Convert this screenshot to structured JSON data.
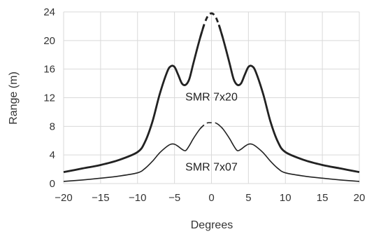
{
  "chart_data": {
    "type": "line",
    "xlabel": "Degrees",
    "ylabel": "Range (m)",
    "xlim": [
      -20,
      20
    ],
    "ylim": [
      0,
      24
    ],
    "xticks": [
      -20,
      -15,
      -10,
      -5,
      0,
      5,
      10,
      15,
      20
    ],
    "yticks": [
      0,
      4,
      8,
      12,
      16,
      20,
      24
    ],
    "xtick_labels": [
      "−20",
      "−15",
      "−10",
      "−5",
      "0",
      "5",
      "10",
      "15",
      "20"
    ],
    "ytick_labels": [
      "0",
      "4",
      "8",
      "12",
      "16",
      "20",
      "24"
    ],
    "grid": true,
    "series": [
      {
        "name": "SMR 7x20",
        "color": "#222222",
        "line_width": "thick",
        "dashed_x_range": [
          -1.3,
          1.3
        ],
        "points": [
          [
            -20,
            1.6
          ],
          [
            -17.5,
            2.1
          ],
          [
            -15,
            2.6
          ],
          [
            -12.5,
            3.3
          ],
          [
            -10,
            4.4
          ],
          [
            -9,
            5.8
          ],
          [
            -8,
            8.6
          ],
          [
            -7,
            12.5
          ],
          [
            -6,
            15.6
          ],
          [
            -5.5,
            16.4
          ],
          [
            -5,
            16.3
          ],
          [
            -4.5,
            15.2
          ],
          [
            -4,
            14.0
          ],
          [
            -3.5,
            13.8
          ],
          [
            -3,
            14.6
          ],
          [
            -2.5,
            16.6
          ],
          [
            -2,
            18.6
          ],
          [
            -1.5,
            20.5
          ],
          [
            -1,
            22.2
          ],
          [
            -0.5,
            23.4
          ],
          [
            0,
            23.8
          ],
          [
            0.5,
            23.4
          ],
          [
            1,
            22.2
          ],
          [
            1.5,
            20.5
          ],
          [
            2,
            18.6
          ],
          [
            2.5,
            16.6
          ],
          [
            3,
            14.6
          ],
          [
            3.5,
            13.8
          ],
          [
            4,
            14.0
          ],
          [
            4.5,
            15.2
          ],
          [
            5,
            16.3
          ],
          [
            5.5,
            16.4
          ],
          [
            6,
            15.6
          ],
          [
            7,
            12.5
          ],
          [
            8,
            8.6
          ],
          [
            9,
            5.8
          ],
          [
            10,
            4.4
          ],
          [
            12.5,
            3.3
          ],
          [
            15,
            2.6
          ],
          [
            17.5,
            2.1
          ],
          [
            20,
            1.6
          ]
        ]
      },
      {
        "name": "SMR 7x07",
        "color": "#222222",
        "line_width": "thin",
        "dashed_x_range": [
          -1.3,
          1.3
        ],
        "points": [
          [
            -20,
            0.3
          ],
          [
            -17.5,
            0.5
          ],
          [
            -15,
            0.75
          ],
          [
            -12.5,
            1.05
          ],
          [
            -10,
            1.5
          ],
          [
            -9,
            2.1
          ],
          [
            -8,
            3.1
          ],
          [
            -7,
            4.3
          ],
          [
            -6,
            5.2
          ],
          [
            -5.5,
            5.5
          ],
          [
            -5,
            5.5
          ],
          [
            -4.5,
            5.2
          ],
          [
            -4,
            4.8
          ],
          [
            -3.5,
            4.6
          ],
          [
            -3,
            5.3
          ],
          [
            -2.5,
            6.2
          ],
          [
            -2,
            7.0
          ],
          [
            -1.5,
            7.7
          ],
          [
            -1,
            8.2
          ],
          [
            -0.5,
            8.5
          ],
          [
            0,
            8.5
          ],
          [
            0.5,
            8.5
          ],
          [
            1,
            8.2
          ],
          [
            1.5,
            7.7
          ],
          [
            2,
            7.0
          ],
          [
            2.5,
            6.2
          ],
          [
            3,
            5.3
          ],
          [
            3.5,
            4.6
          ],
          [
            4,
            4.8
          ],
          [
            4.5,
            5.2
          ],
          [
            5,
            5.5
          ],
          [
            5.5,
            5.5
          ],
          [
            6,
            5.2
          ],
          [
            7,
            4.3
          ],
          [
            8,
            3.1
          ],
          [
            9,
            2.1
          ],
          [
            10,
            1.5
          ],
          [
            12.5,
            1.05
          ],
          [
            15,
            0.75
          ],
          [
            17.5,
            0.5
          ],
          [
            20,
            0.3
          ]
        ]
      }
    ]
  }
}
